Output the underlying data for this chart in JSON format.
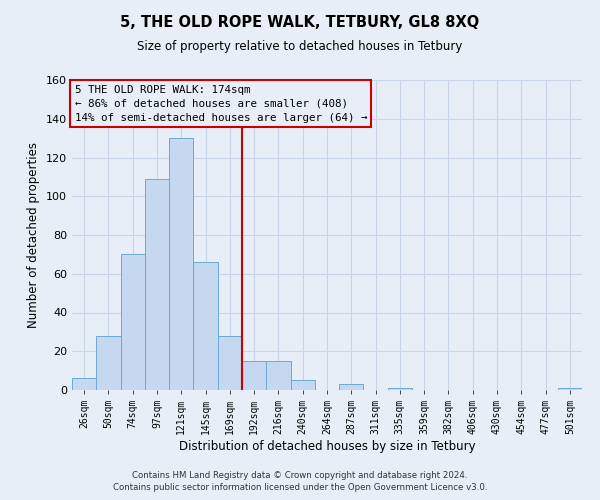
{
  "title": "5, THE OLD ROPE WALK, TETBURY, GL8 8XQ",
  "subtitle": "Size of property relative to detached houses in Tetbury",
  "xlabel": "Distribution of detached houses by size in Tetbury",
  "ylabel": "Number of detached properties",
  "footer_line1": "Contains HM Land Registry data © Crown copyright and database right 2024.",
  "footer_line2": "Contains public sector information licensed under the Open Government Licence v3.0.",
  "bin_labels": [
    "26sqm",
    "50sqm",
    "74sqm",
    "97sqm",
    "121sqm",
    "145sqm",
    "169sqm",
    "192sqm",
    "216sqm",
    "240sqm",
    "264sqm",
    "287sqm",
    "311sqm",
    "335sqm",
    "359sqm",
    "382sqm",
    "406sqm",
    "430sqm",
    "454sqm",
    "477sqm",
    "501sqm"
  ],
  "bar_heights": [
    6,
    28,
    70,
    109,
    130,
    66,
    28,
    15,
    15,
    5,
    0,
    3,
    0,
    1,
    0,
    0,
    0,
    0,
    0,
    0,
    1
  ],
  "bar_color": "#c5d8ef",
  "bar_edge_color": "#6aaad4",
  "vline_color": "#cc0000",
  "annotation_text_line1": "5 THE OLD ROPE WALK: 174sqm",
  "annotation_text_line2": "← 86% of detached houses are smaller (408)",
  "annotation_text_line3": "14% of semi-detached houses are larger (64) →",
  "box_edge_color": "#cc0000",
  "ylim": [
    0,
    160
  ],
  "yticks": [
    0,
    20,
    40,
    60,
    80,
    100,
    120,
    140,
    160
  ],
  "grid_color": "#c8d4e8",
  "background_color": "#e8eef8"
}
